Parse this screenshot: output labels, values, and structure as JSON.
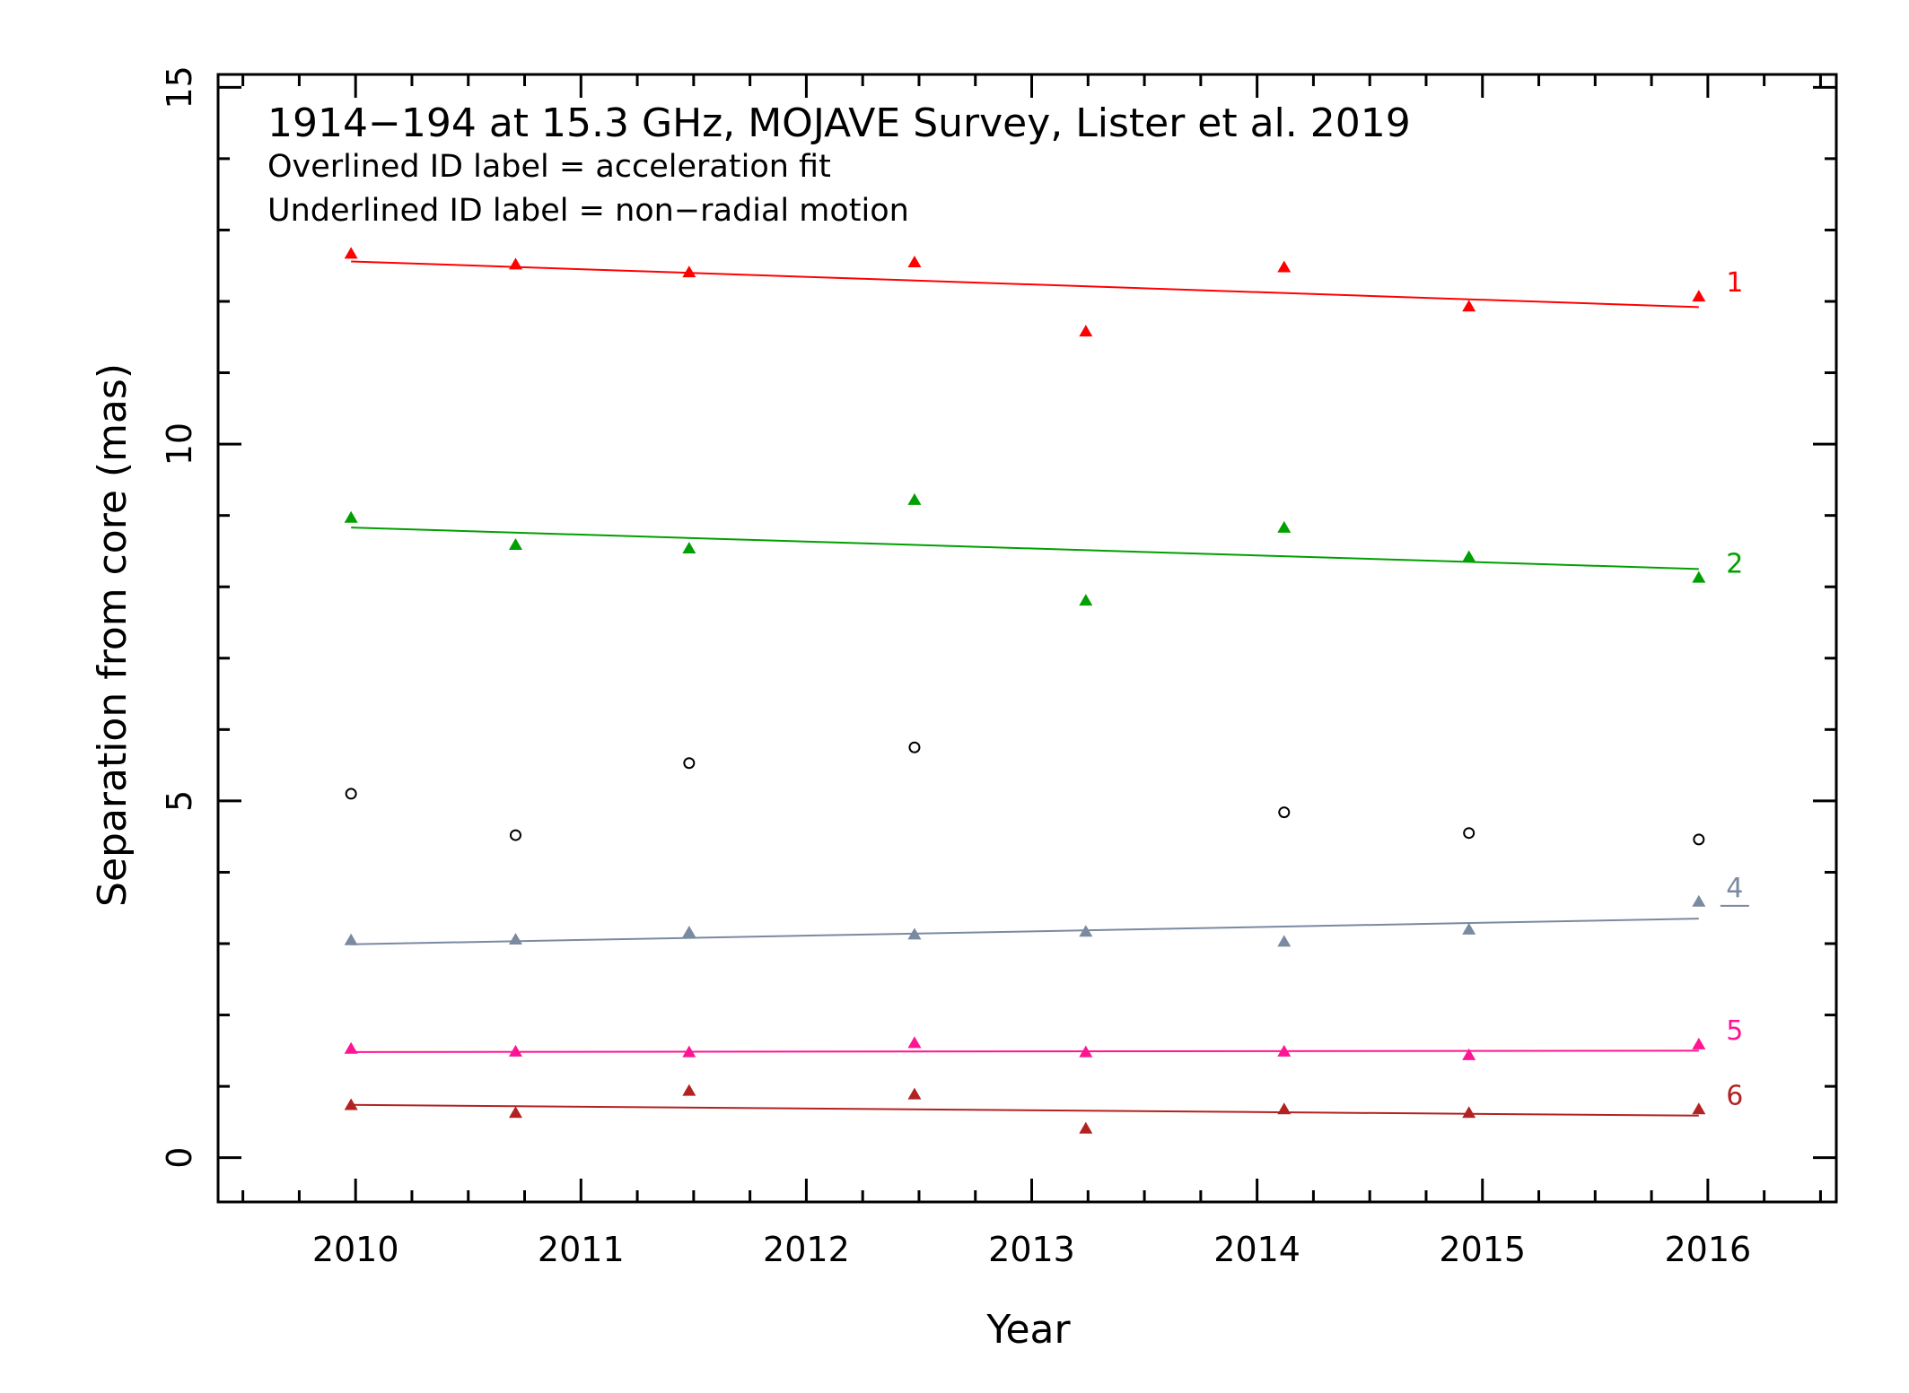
{
  "chart_data": {
    "type": "scatter",
    "title": "1914−194 at 15.3 GHz, MOJAVE Survey, Lister et al. 2019",
    "notes": [
      "Overlined ID label = acceleration fit",
      "Underlined ID label = non−radial motion"
    ],
    "xlabel": "Year",
    "ylabel": "Separation from core (mas)",
    "xlim": [
      2009.39,
      2016.57
    ],
    "ylim": [
      -0.62,
      15.18
    ],
    "xticks": [
      2010,
      2011,
      2012,
      2013,
      2014,
      2015,
      2016
    ],
    "xtick_labels": [
      "2010",
      "2011",
      "2012",
      "2013",
      "2014",
      "2015",
      "2016"
    ],
    "yticks": [
      0,
      5,
      10,
      15
    ],
    "ytick_labels": [
      "0",
      "5",
      "10",
      "15"
    ],
    "grid": false,
    "series": [
      {
        "name": "1",
        "color": "#ff0000",
        "marker": "triangle",
        "label_style": "plain",
        "x": [
          2009.98,
          2010.71,
          2011.48,
          2012.48,
          2013.24,
          2014.12,
          2014.94,
          2015.96
        ],
        "y": [
          12.66,
          12.51,
          12.4,
          12.54,
          11.57,
          12.47,
          11.92,
          12.06
        ],
        "fit": {
          "x": [
            2009.98,
            2015.96
          ],
          "y": [
            12.56,
            11.92
          ]
        }
      },
      {
        "name": "2",
        "color": "#00a000",
        "marker": "triangle",
        "label_style": "plain",
        "x": [
          2009.98,
          2010.71,
          2011.48,
          2012.48,
          2013.24,
          2014.12,
          2014.94,
          2015.96
        ],
        "y": [
          8.96,
          8.58,
          8.53,
          9.21,
          7.8,
          8.82,
          8.41,
          8.12
        ],
        "fit": {
          "x": [
            2009.98,
            2015.96
          ],
          "y": [
            8.83,
            8.25
          ]
        }
      },
      {
        "name": "",
        "color": "#000000",
        "marker": "open-circle",
        "label_style": "none",
        "x": [
          2009.98,
          2010.71,
          2011.48,
          2012.48,
          2014.12,
          2014.94,
          2015.96
        ],
        "y": [
          5.1,
          4.52,
          5.53,
          5.75,
          4.84,
          4.55,
          4.46
        ]
      },
      {
        "name": "4",
        "color": "#7a8aa0",
        "marker": "triangle",
        "label_style": "underlined",
        "x": [
          2009.98,
          2010.71,
          2011.48,
          2012.48,
          2013.24,
          2014.12,
          2014.94,
          2015.96
        ],
        "y": [
          3.04,
          3.05,
          3.15,
          3.12,
          3.16,
          3.02,
          3.19,
          3.58
        ],
        "fit": {
          "x": [
            2009.98,
            2015.96
          ],
          "y": [
            2.99,
            3.35
          ]
        }
      },
      {
        "name": "5",
        "color": "#ff1493",
        "marker": "triangle",
        "label_style": "plain",
        "x": [
          2009.98,
          2010.71,
          2011.48,
          2012.48,
          2013.24,
          2014.12,
          2014.94,
          2015.96
        ],
        "y": [
          1.52,
          1.48,
          1.47,
          1.6,
          1.47,
          1.48,
          1.43,
          1.58
        ],
        "fit": {
          "x": [
            2009.98,
            2015.96
          ],
          "y": [
            1.48,
            1.5
          ]
        }
      },
      {
        "name": "6",
        "color": "#b22222",
        "marker": "triangle",
        "label_style": "plain",
        "x": [
          2009.98,
          2010.71,
          2011.48,
          2012.48,
          2013.24,
          2014.12,
          2014.94,
          2015.96
        ],
        "y": [
          0.73,
          0.62,
          0.93,
          0.88,
          0.4,
          0.67,
          0.62,
          0.67
        ],
        "fit": {
          "x": [
            2009.98,
            2015.96
          ],
          "y": [
            0.74,
            0.59
          ]
        }
      }
    ]
  }
}
